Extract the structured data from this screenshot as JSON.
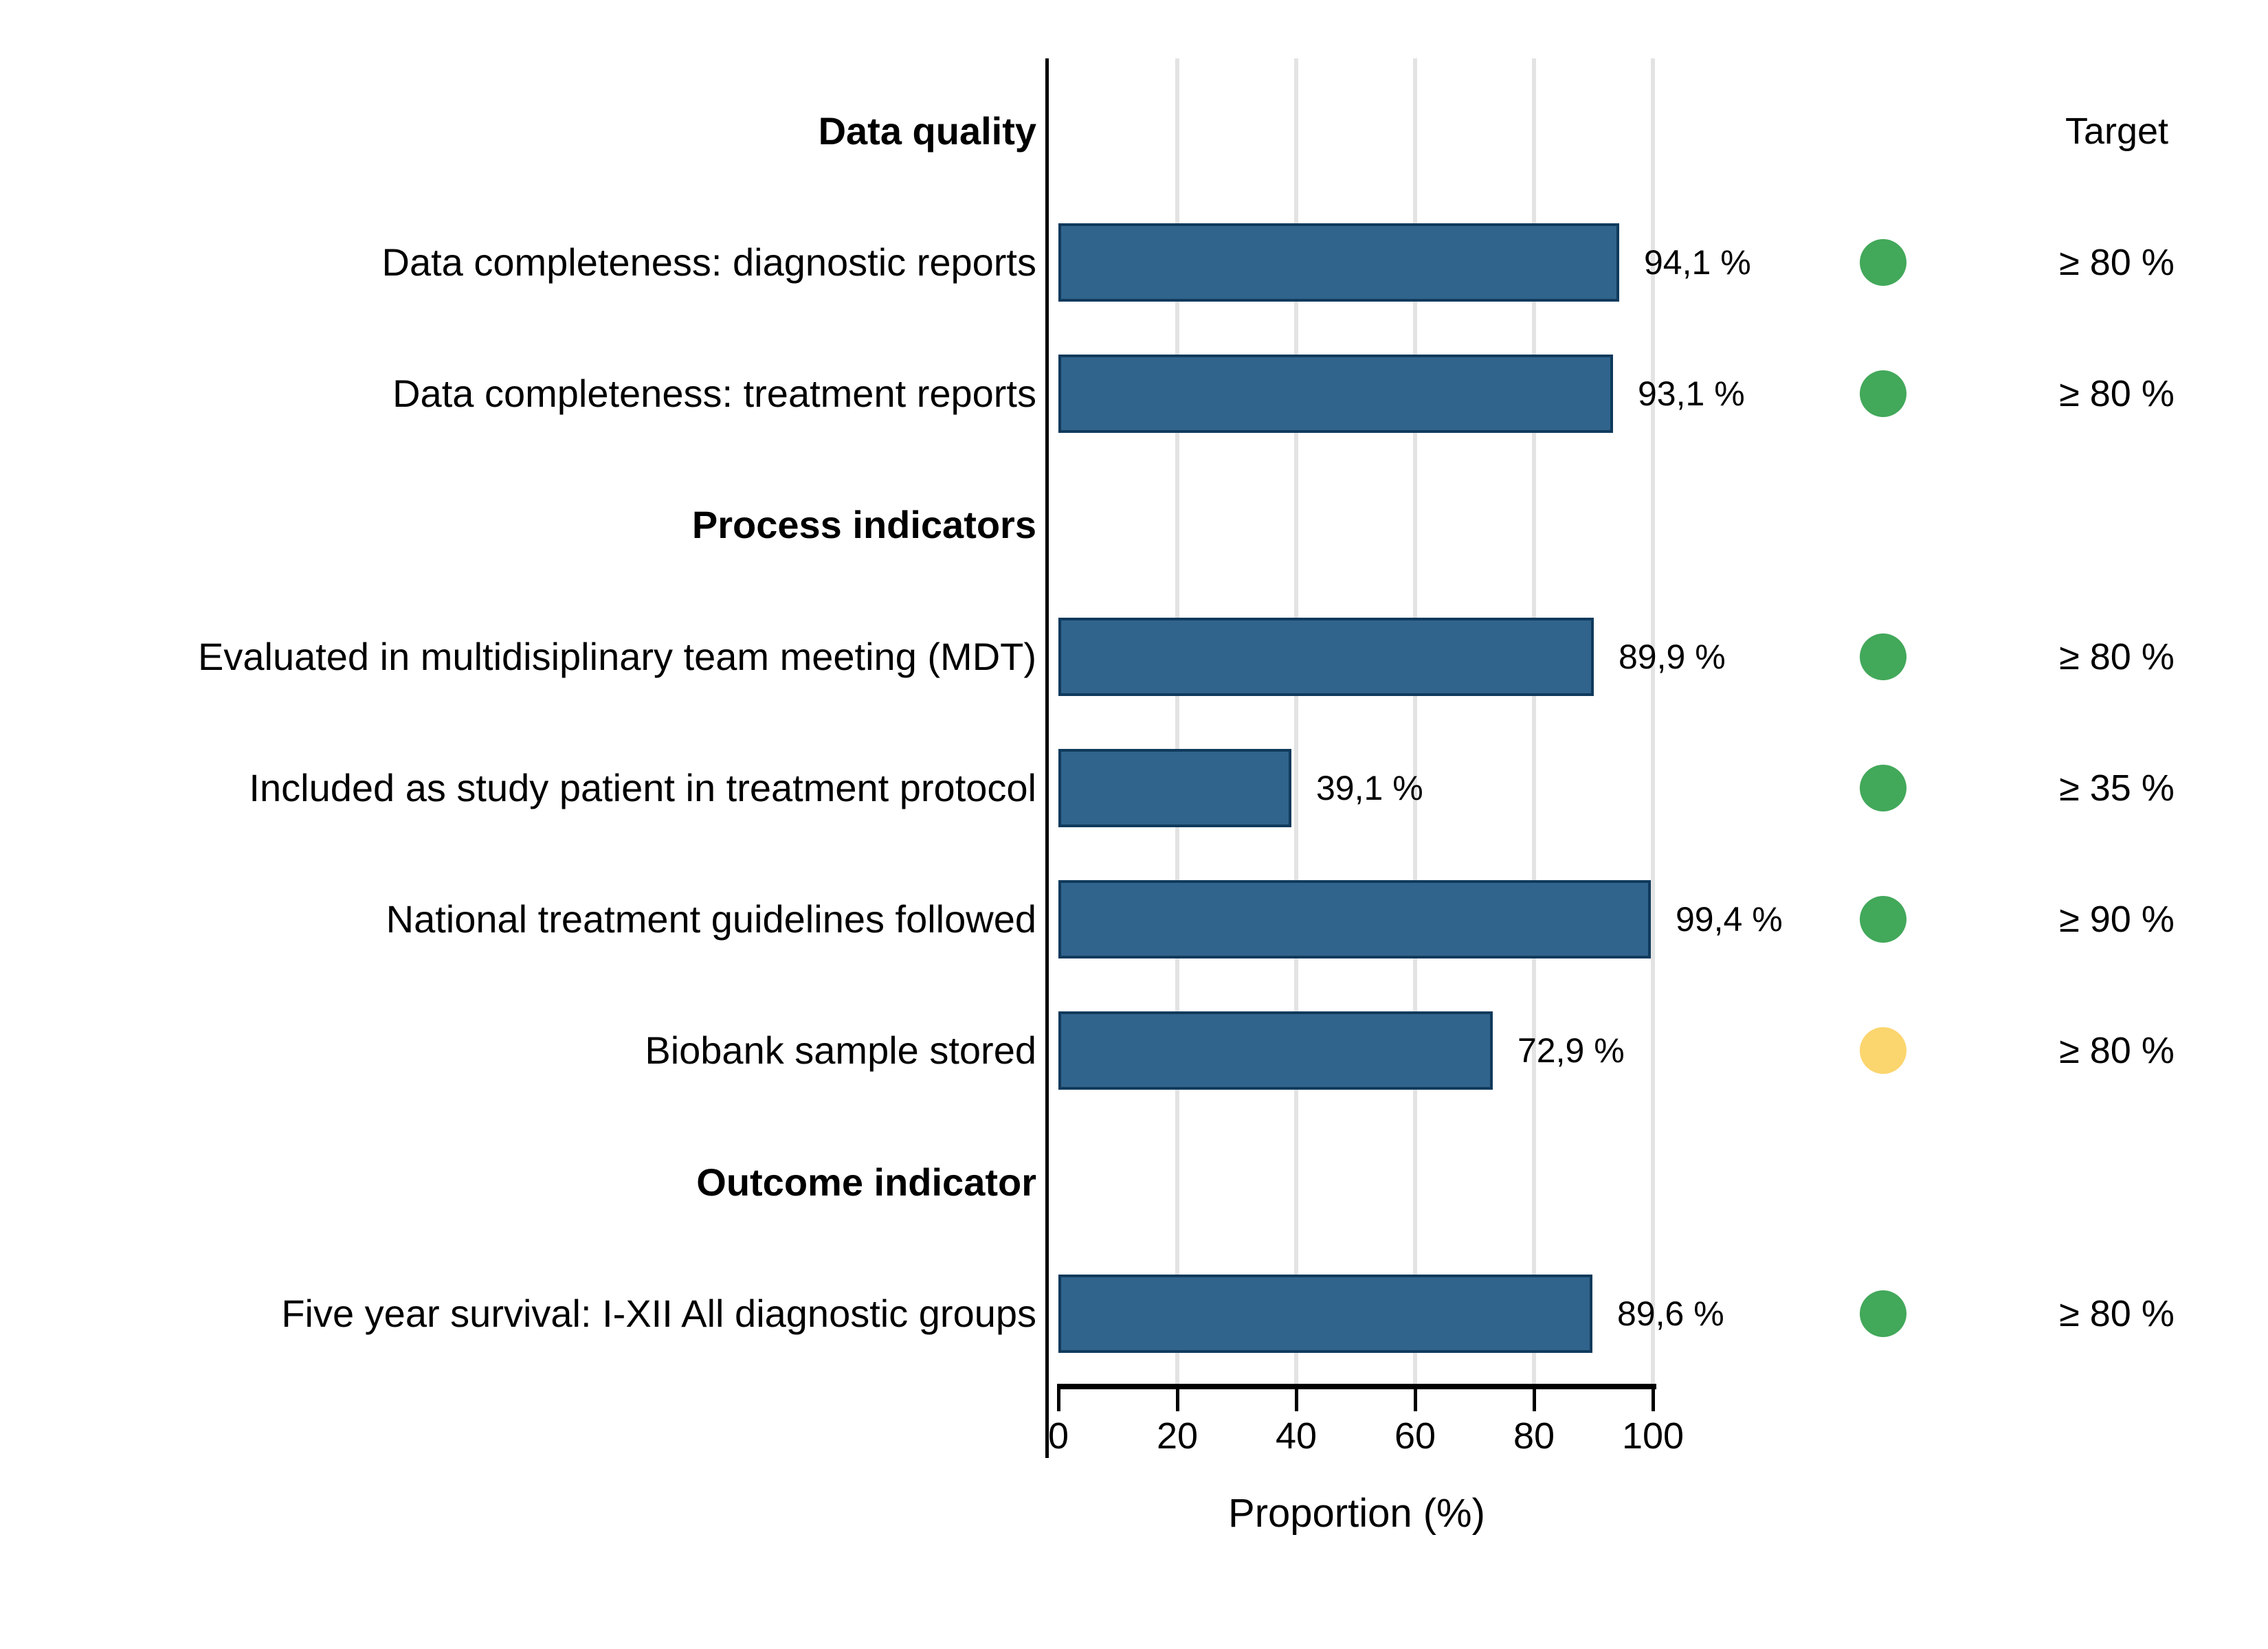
{
  "header": {
    "target_column_label": "Target"
  },
  "rows": [
    {
      "type": "section",
      "label": "Data quality"
    },
    {
      "type": "indicator",
      "label": "Data completeness: diagnostic reports",
      "value": 94.1,
      "value_label": "94,1 %",
      "status": "green",
      "target": "≥ 80 %"
    },
    {
      "type": "indicator",
      "label": "Data completeness: treatment reports",
      "value": 93.1,
      "value_label": "93,1 %",
      "status": "green",
      "target": "≥ 80 %"
    },
    {
      "type": "section",
      "label": "Process indicators"
    },
    {
      "type": "indicator",
      "label": "Evaluated in multidisiplinary team meeting (MDT)",
      "value": 89.9,
      "value_label": "89,9 %",
      "status": "green",
      "target": "≥ 80 %"
    },
    {
      "type": "indicator",
      "label": "Included as study patient in treatment protocol",
      "value": 39.1,
      "value_label": "39,1 %",
      "status": "green",
      "target": "≥ 35 %"
    },
    {
      "type": "indicator",
      "label": "National treatment guidelines followed",
      "value": 99.4,
      "value_label": "99,4 %",
      "status": "green",
      "target": "≥ 90 %"
    },
    {
      "type": "indicator",
      "label": "Biobank sample stored",
      "value": 72.9,
      "value_label": "72,9 %",
      "status": "yellow",
      "target": "≥ 80 %"
    },
    {
      "type": "section",
      "label": "Outcome indicator"
    },
    {
      "type": "indicator",
      "label": "Five year survival: I-XII All diagnostic groups",
      "value": 89.6,
      "value_label": "89,6 %",
      "status": "green",
      "target": "≥ 80 %"
    }
  ],
  "x_axis": {
    "ticks": [
      "0",
      "20",
      "40",
      "60",
      "80",
      "100"
    ],
    "title": "Proportion (%)"
  },
  "colors": {
    "bar_fill": "#31648C",
    "bar_border": "#0F3A5C",
    "green": "#42A85A",
    "yellow": "#FBD56E",
    "gridline": "#E3E3E3"
  },
  "chart_data": {
    "type": "bar",
    "orientation": "horizontal",
    "categories": [
      "Data completeness: diagnostic reports",
      "Data completeness: treatment reports",
      "Evaluated in multidisiplinary team meeting (MDT)",
      "Included as study patient in treatment protocol",
      "National treatment guidelines followed",
      "Biobank sample stored",
      "Five year survival: I-XII All diagnostic groups"
    ],
    "values": [
      94.1,
      93.1,
      89.9,
      39.1,
      99.4,
      72.9,
      89.6
    ],
    "value_labels": [
      "94,1 %",
      "93,1 %",
      "89,9 %",
      "39,1 %",
      "99,4 %",
      "72,9 %",
      "89,6 %"
    ],
    "targets": [
      "≥ 80 %",
      "≥ 80 %",
      "≥ 80 %",
      "≥ 35 %",
      "≥ 90 %",
      "≥ 80 %",
      "≥ 80 %"
    ],
    "target_status": [
      "green",
      "green",
      "green",
      "green",
      "green",
      "yellow",
      "green"
    ],
    "sections": [
      {
        "label": "Data quality",
        "category_indexes": [
          0,
          1
        ]
      },
      {
        "label": "Process indicators",
        "category_indexes": [
          2,
          3,
          4,
          5
        ]
      },
      {
        "label": "Outcome indicator",
        "category_indexes": [
          6
        ]
      }
    ],
    "title": "",
    "xlabel": "Proportion (%)",
    "ylabel": "",
    "xlim": [
      0,
      100
    ],
    "x_ticks": [
      0,
      20,
      40,
      60,
      80,
      100
    ],
    "grid": "vertical light gray lines at 20/40/60/80/100",
    "legend_position": "right column labeled Target with status dots"
  }
}
